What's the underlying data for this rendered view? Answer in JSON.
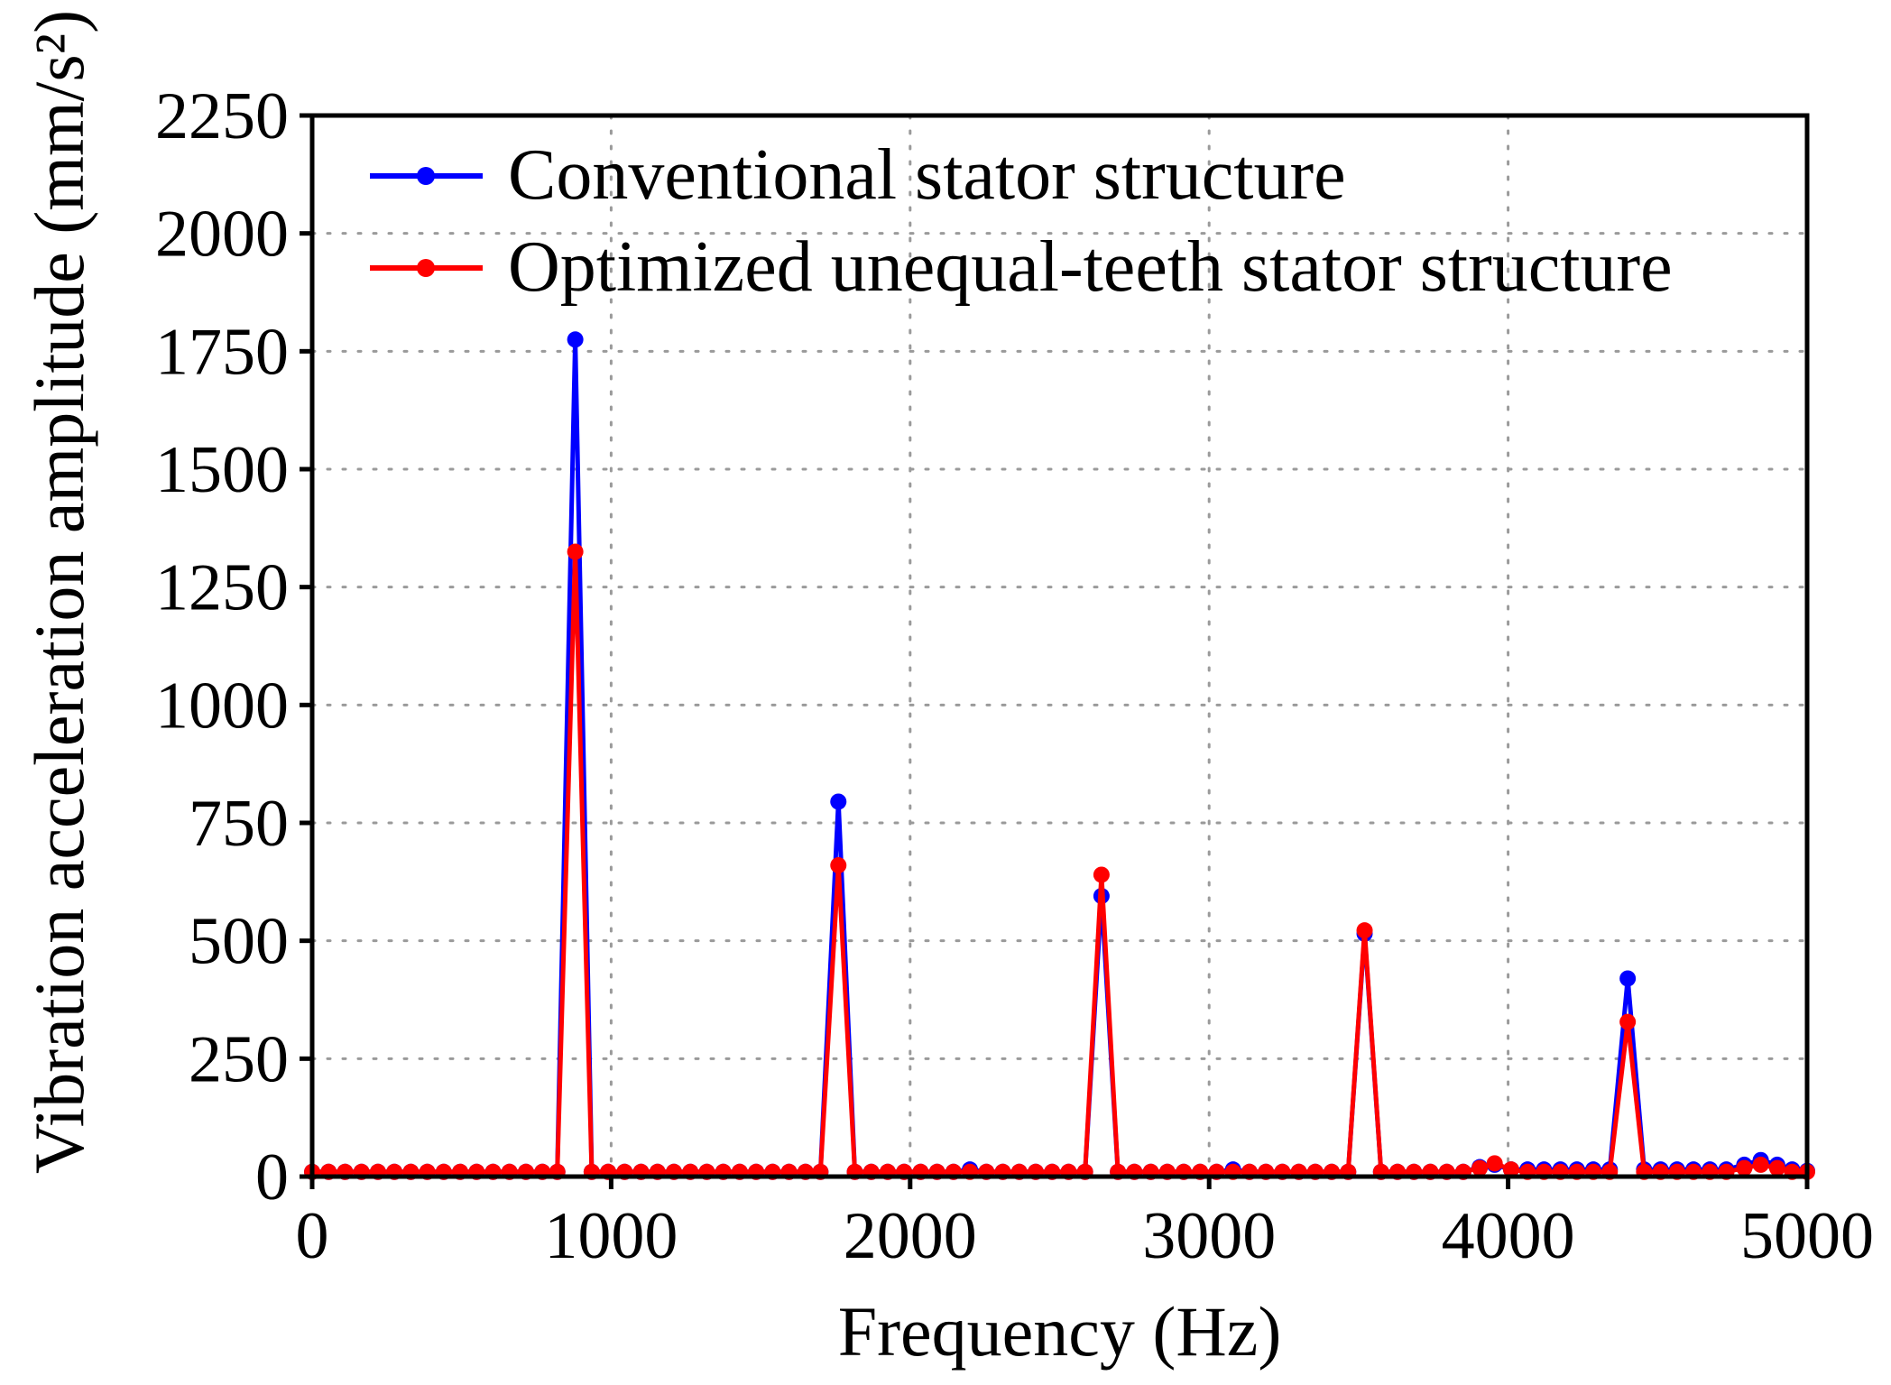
{
  "chart_data": {
    "type": "line",
    "xlabel": "Frequency (Hz)",
    "ylabel": "Vibration acceleration amplitude (mm/s²)",
    "xlim": [
      0,
      5000
    ],
    "ylim": [
      0,
      2250
    ],
    "xticks": [
      0,
      1000,
      2000,
      3000,
      4000,
      5000
    ],
    "yticks": [
      0,
      250,
      500,
      750,
      1000,
      1250,
      1500,
      1750,
      2000,
      2250
    ],
    "grid": true,
    "legend_position": "top-left",
    "series": [
      {
        "name": "Conventional stator structure",
        "color": "#0000ff",
        "points": [
          [
            0,
            10
          ],
          [
            55,
            10
          ],
          [
            110,
            10
          ],
          [
            165,
            10
          ],
          [
            220,
            10
          ],
          [
            275,
            10
          ],
          [
            330,
            10
          ],
          [
            385,
            10
          ],
          [
            440,
            10
          ],
          [
            495,
            10
          ],
          [
            550,
            10
          ],
          [
            605,
            10
          ],
          [
            660,
            10
          ],
          [
            715,
            10
          ],
          [
            770,
            10
          ],
          [
            820,
            10
          ],
          [
            880,
            1775
          ],
          [
            935,
            10
          ],
          [
            990,
            10
          ],
          [
            1045,
            10
          ],
          [
            1100,
            10
          ],
          [
            1155,
            10
          ],
          [
            1210,
            10
          ],
          [
            1265,
            10
          ],
          [
            1320,
            10
          ],
          [
            1375,
            10
          ],
          [
            1430,
            10
          ],
          [
            1485,
            10
          ],
          [
            1540,
            10
          ],
          [
            1595,
            10
          ],
          [
            1650,
            10
          ],
          [
            1700,
            10
          ],
          [
            1760,
            795
          ],
          [
            1815,
            10
          ],
          [
            1870,
            10
          ],
          [
            1925,
            10
          ],
          [
            1980,
            10
          ],
          [
            2035,
            10
          ],
          [
            2090,
            10
          ],
          [
            2145,
            10
          ],
          [
            2200,
            15
          ],
          [
            2255,
            10
          ],
          [
            2310,
            10
          ],
          [
            2365,
            10
          ],
          [
            2420,
            10
          ],
          [
            2475,
            10
          ],
          [
            2530,
            10
          ],
          [
            2585,
            10
          ],
          [
            2640,
            595
          ],
          [
            2695,
            10
          ],
          [
            2750,
            10
          ],
          [
            2805,
            10
          ],
          [
            2860,
            10
          ],
          [
            2915,
            10
          ],
          [
            2970,
            10
          ],
          [
            3025,
            10
          ],
          [
            3080,
            15
          ],
          [
            3135,
            10
          ],
          [
            3190,
            10
          ],
          [
            3245,
            10
          ],
          [
            3300,
            10
          ],
          [
            3355,
            10
          ],
          [
            3410,
            10
          ],
          [
            3465,
            10
          ],
          [
            3520,
            515
          ],
          [
            3575,
            10
          ],
          [
            3630,
            10
          ],
          [
            3685,
            10
          ],
          [
            3740,
            10
          ],
          [
            3795,
            10
          ],
          [
            3850,
            10
          ],
          [
            3905,
            20
          ],
          [
            3955,
            25
          ],
          [
            4010,
            15
          ],
          [
            4065,
            15
          ],
          [
            4120,
            15
          ],
          [
            4175,
            15
          ],
          [
            4230,
            15
          ],
          [
            4285,
            15
          ],
          [
            4340,
            15
          ],
          [
            4400,
            420
          ],
          [
            4455,
            15
          ],
          [
            4510,
            15
          ],
          [
            4565,
            15
          ],
          [
            4620,
            15
          ],
          [
            4675,
            15
          ],
          [
            4730,
            15
          ],
          [
            4790,
            25
          ],
          [
            4845,
            35
          ],
          [
            4900,
            25
          ],
          [
            4950,
            15
          ],
          [
            5000,
            12
          ]
        ]
      },
      {
        "name": "Optimized unequal-teeth stator structure",
        "color": "#ff0000",
        "points": [
          [
            0,
            10
          ],
          [
            55,
            10
          ],
          [
            110,
            10
          ],
          [
            165,
            10
          ],
          [
            220,
            10
          ],
          [
            275,
            10
          ],
          [
            330,
            10
          ],
          [
            385,
            10
          ],
          [
            440,
            10
          ],
          [
            495,
            10
          ],
          [
            550,
            10
          ],
          [
            605,
            10
          ],
          [
            660,
            10
          ],
          [
            715,
            10
          ],
          [
            770,
            10
          ],
          [
            820,
            10
          ],
          [
            880,
            1325
          ],
          [
            935,
            10
          ],
          [
            990,
            10
          ],
          [
            1045,
            10
          ],
          [
            1100,
            10
          ],
          [
            1155,
            10
          ],
          [
            1210,
            10
          ],
          [
            1265,
            10
          ],
          [
            1320,
            10
          ],
          [
            1375,
            10
          ],
          [
            1430,
            10
          ],
          [
            1485,
            10
          ],
          [
            1540,
            10
          ],
          [
            1595,
            10
          ],
          [
            1650,
            10
          ],
          [
            1700,
            10
          ],
          [
            1760,
            660
          ],
          [
            1815,
            10
          ],
          [
            1870,
            10
          ],
          [
            1925,
            10
          ],
          [
            1980,
            10
          ],
          [
            2035,
            10
          ],
          [
            2090,
            10
          ],
          [
            2145,
            10
          ],
          [
            2200,
            10
          ],
          [
            2255,
            10
          ],
          [
            2310,
            10
          ],
          [
            2365,
            10
          ],
          [
            2420,
            10
          ],
          [
            2475,
            10
          ],
          [
            2530,
            10
          ],
          [
            2585,
            10
          ],
          [
            2640,
            640
          ],
          [
            2695,
            10
          ],
          [
            2750,
            10
          ],
          [
            2805,
            10
          ],
          [
            2860,
            10
          ],
          [
            2915,
            10
          ],
          [
            2970,
            10
          ],
          [
            3025,
            10
          ],
          [
            3080,
            10
          ],
          [
            3135,
            10
          ],
          [
            3190,
            10
          ],
          [
            3245,
            10
          ],
          [
            3300,
            10
          ],
          [
            3355,
            10
          ],
          [
            3410,
            10
          ],
          [
            3465,
            10
          ],
          [
            3520,
            522
          ],
          [
            3575,
            10
          ],
          [
            3630,
            10
          ],
          [
            3685,
            10
          ],
          [
            3740,
            10
          ],
          [
            3795,
            10
          ],
          [
            3850,
            10
          ],
          [
            3905,
            18
          ],
          [
            3955,
            28
          ],
          [
            4010,
            15
          ],
          [
            4065,
            10
          ],
          [
            4120,
            10
          ],
          [
            4175,
            10
          ],
          [
            4230,
            10
          ],
          [
            4285,
            10
          ],
          [
            4340,
            10
          ],
          [
            4400,
            328
          ],
          [
            4455,
            10
          ],
          [
            4510,
            10
          ],
          [
            4565,
            10
          ],
          [
            4620,
            10
          ],
          [
            4675,
            10
          ],
          [
            4730,
            10
          ],
          [
            4790,
            18
          ],
          [
            4845,
            25
          ],
          [
            4900,
            18
          ],
          [
            4950,
            10
          ],
          [
            5000,
            10
          ]
        ]
      }
    ]
  }
}
